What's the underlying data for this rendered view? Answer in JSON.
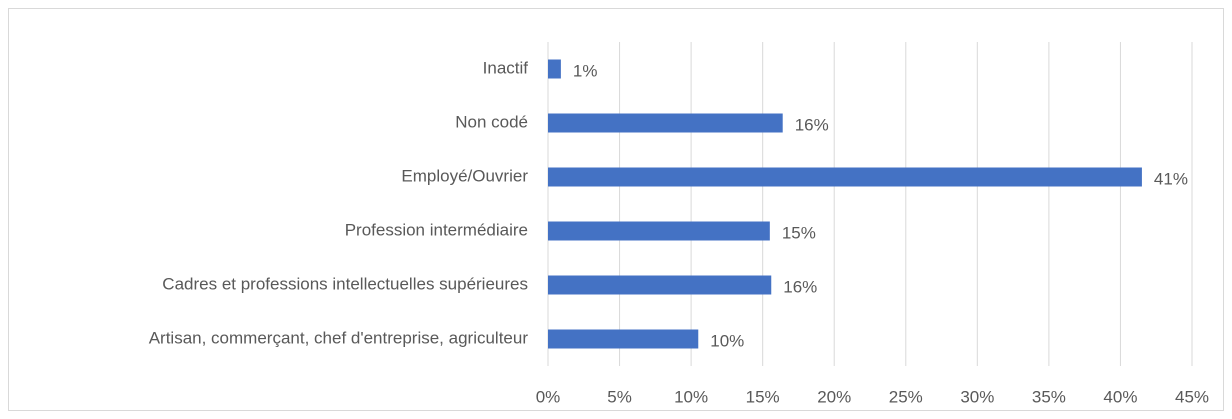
{
  "chart_data": {
    "type": "hbar",
    "categories": [
      "Inactif",
      "Non codé ",
      "Employé/Ouvrier",
      "Profession intermédiaire",
      "Cadres et professions intellectuelles supérieures",
      "Artisan, commerçant, chef d'entreprise, agriculteur"
    ],
    "values": [
      0.9,
      16.4,
      41.5,
      15.5,
      15.6,
      10.5
    ],
    "value_labels": [
      "1%",
      "16%",
      "41%",
      "15%",
      "16%",
      "10%"
    ],
    "color": "#4472c4",
    "xlim": [
      0,
      45
    ],
    "xticks": [
      {
        "value": 0,
        "label": "0%"
      },
      {
        "value": 5,
        "label": "5%"
      },
      {
        "value": 10,
        "label": "10%"
      },
      {
        "value": 15,
        "label": "15%"
      },
      {
        "value": 20,
        "label": "20%"
      },
      {
        "value": 25,
        "label": "25%"
      },
      {
        "value": 30,
        "label": "30%"
      },
      {
        "value": 35,
        "label": "35%"
      },
      {
        "value": 40,
        "label": "40%"
      },
      {
        "value": 45,
        "label": "45%"
      }
    ],
    "grid": true
  }
}
